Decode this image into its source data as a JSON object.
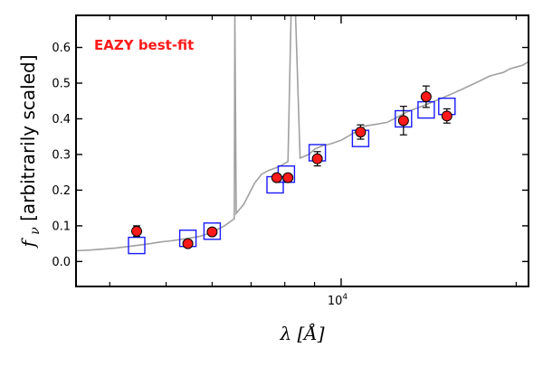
{
  "chart_data": {
    "type": "scatter",
    "title": "",
    "annotation": "EAZY best-fit",
    "xlabel": "λ [Å]",
    "ylabel": "f_ν [arbitrarily scaled]",
    "ylabel_symbol": "f",
    "ylabel_subscript": "ν",
    "ylabel_text": " [arbitrarily scaled]",
    "xlabel_symbol": "λ",
    "xlabel_unit": "[Å]",
    "xscale": "log",
    "xlim": [
      3500,
      21000
    ],
    "ylim": [
      -0.07,
      0.69
    ],
    "yticks": [
      0.0,
      0.1,
      0.2,
      0.3,
      0.4,
      0.5,
      0.6
    ],
    "ytick_labels": [
      "0.0",
      "0.1",
      "0.2",
      "0.3",
      "0.4",
      "0.5",
      "0.6"
    ],
    "xtick_major": [
      10000
    ],
    "xtick_major_label": "10",
    "xtick_major_label_exp": "4",
    "xtick_minor": [
      4000,
      5000,
      6000,
      7000,
      8000,
      9000,
      20000
    ],
    "series": [
      {
        "name": "best-fit template",
        "kind": "line",
        "color": "#a0a0a0",
        "x": [
          3500,
          3700,
          3900,
          4100,
          4300,
          4500,
          4700,
          4900,
          5100,
          5300,
          5500,
          5700,
          5900,
          6100,
          6300,
          6550,
          6565,
          6600,
          6800,
          7000,
          7100,
          7300,
          7500,
          7800,
          8100,
          8200,
          8350,
          8500,
          8800,
          9000,
          9300,
          9600,
          10000,
          10500,
          11000,
          11500,
          12000,
          12500,
          13000,
          13500,
          14000,
          14500,
          15000,
          15500,
          16000,
          16500,
          17000,
          17500,
          18000,
          18500,
          19000,
          19500,
          20000,
          20500,
          21000
        ],
        "y": [
          0.03,
          0.032,
          0.035,
          0.038,
          0.042,
          0.046,
          0.05,
          0.055,
          0.058,
          0.062,
          0.066,
          0.07,
          0.078,
          0.088,
          0.1,
          0.12,
          0.7,
          0.135,
          0.16,
          0.2,
          0.22,
          0.245,
          0.255,
          0.265,
          0.28,
          0.7,
          0.7,
          0.29,
          0.3,
          0.315,
          0.325,
          0.33,
          0.34,
          0.36,
          0.38,
          0.385,
          0.39,
          0.405,
          0.42,
          0.43,
          0.44,
          0.45,
          0.46,
          0.47,
          0.48,
          0.49,
          0.5,
          0.51,
          0.52,
          0.525,
          0.53,
          0.54,
          0.545,
          0.55,
          0.56
        ]
      },
      {
        "name": "template photometry",
        "kind": "open-square",
        "color": "#1a1aff",
        "x": [
          4450,
          5450,
          6000,
          7700,
          8050,
          9100,
          10800,
          12800,
          14000,
          15200
        ],
        "y": [
          0.045,
          0.065,
          0.085,
          0.215,
          0.245,
          0.305,
          0.345,
          0.4,
          0.425,
          0.435
        ]
      },
      {
        "name": "observed photometry",
        "kind": "errorbar-point",
        "color": "#ff1a1a",
        "x": [
          4450,
          5450,
          6000,
          7750,
          8100,
          9100,
          10800,
          12800,
          14000,
          15200
        ],
        "y": [
          0.085,
          0.05,
          0.083,
          0.235,
          0.235,
          0.288,
          0.363,
          0.395,
          0.462,
          0.408
        ],
        "yerr": [
          0.015,
          0.006,
          0.006,
          0.008,
          0.008,
          0.02,
          0.02,
          0.04,
          0.03,
          0.02
        ]
      }
    ]
  },
  "colors": {
    "template_line": "#a0a0a0",
    "template_square": "#1a1aff",
    "observed_point": "#ff1a1a",
    "annotation": "#ff1a1a",
    "axis": "#000000"
  }
}
